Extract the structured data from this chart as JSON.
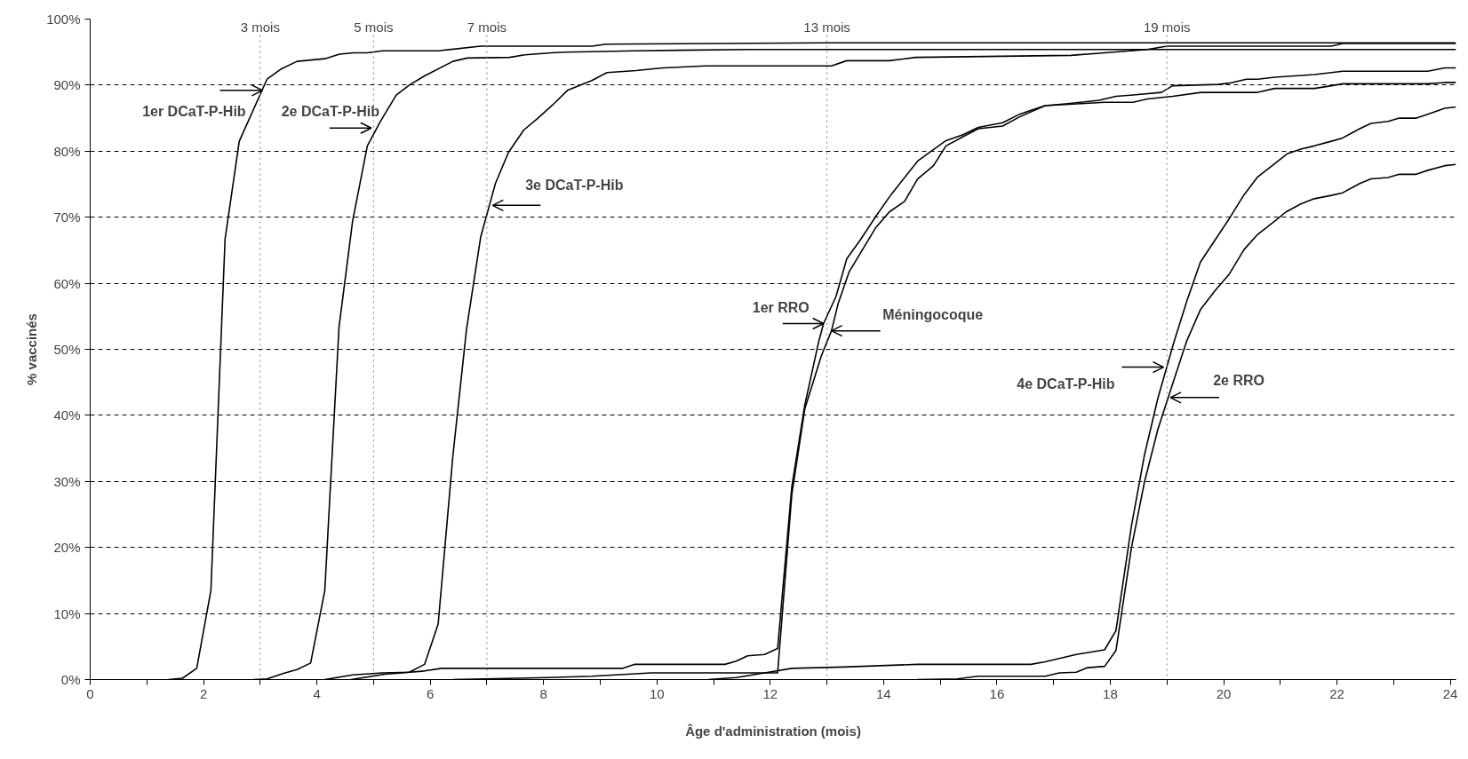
{
  "chart_data": {
    "type": "line",
    "xlabel": "Âge d'administration (mois)",
    "ylabel": "% vaccinés",
    "xlim": [
      0,
      24.1
    ],
    "ylim": [
      0,
      100
    ],
    "xticks": [
      0,
      {
        "value": 1,
        "label": null
      },
      2,
      {
        "value": 3,
        "label": null
      },
      4,
      {
        "value": 5,
        "label": null
      },
      6,
      {
        "value": 7,
        "label": null
      },
      8,
      {
        "value": 9,
        "label": null
      },
      10,
      {
        "value": 11,
        "label": null
      },
      12,
      {
        "value": 13,
        "label": null
      },
      14,
      {
        "value": 15,
        "label": null
      },
      16,
      {
        "value": 17,
        "label": null
      },
      18,
      {
        "value": 19,
        "label": null
      },
      20,
      {
        "value": 21,
        "label": null
      },
      22,
      {
        "value": 23,
        "label": null
      },
      24
    ],
    "yticks": [
      {
        "value": 0,
        "label": "0%"
      },
      {
        "value": 10,
        "label": "10%"
      },
      {
        "value": 20,
        "label": "20%"
      },
      {
        "value": 30,
        "label": "30%"
      },
      {
        "value": 40,
        "label": "40%"
      },
      {
        "value": 50,
        "label": "50%"
      },
      {
        "value": 60,
        "label": "60%"
      },
      {
        "value": 70,
        "label": "70%"
      },
      {
        "value": 80,
        "label": "80%"
      },
      {
        "value": 90,
        "label": "90%"
      },
      {
        "value": 100,
        "label": "100%"
      }
    ],
    "grid": "y",
    "line_style": "solid",
    "series": [
      {
        "color": "#000000",
        "x": [
          1.38,
          1.63,
          1.88,
          2.13,
          2.38,
          2.63,
          3.12,
          3.36,
          3.65,
          4.14,
          4.4,
          4.65,
          4.89,
          5.16,
          6.14,
          6.89,
          8.86,
          9.1,
          13.0,
          24.1
        ],
        "values": [
          0,
          0.2,
          1.7,
          13.5,
          66.7,
          81.5,
          90.9,
          92.4,
          93.6,
          94.0,
          94.7,
          94.9,
          94.9,
          95.2,
          95.2,
          95.9,
          95.9,
          96.2,
          96.4,
          96.4
        ]
      },
      {
        "color": "#000000",
        "x": [
          2.89,
          3.12,
          3.4,
          3.65,
          3.89,
          4.14,
          4.39,
          4.63,
          4.89,
          5.12,
          5.4,
          5.63,
          5.9,
          6.4,
          6.65,
          7.4,
          7.67,
          8.14,
          8.38,
          9.63,
          11.63,
          24.1
        ],
        "values": [
          0,
          0.1,
          0.9,
          1.5,
          2.5,
          13.5,
          53.3,
          69.4,
          80.8,
          84.5,
          88.5,
          90.0,
          91.4,
          93.6,
          94.1,
          94.2,
          94.6,
          94.9,
          95.0,
          95.2,
          95.4,
          95.4
        ]
      },
      {
        "color": "#000000",
        "x": [
          4.14,
          4.63,
          5.16,
          5.63,
          5.9,
          6.14,
          6.4,
          6.64,
          6.89,
          7.15,
          7.38,
          7.65,
          7.9,
          8.16,
          8.42,
          8.85,
          9.12,
          9.63,
          10.1,
          10.85,
          13.08,
          13.35,
          14.1,
          14.57,
          16.38,
          17.3,
          17.9,
          18.65,
          19.0,
          21.9,
          22.1,
          24.1
        ],
        "values": [
          0,
          0.7,
          1.0,
          1.1,
          2.3,
          8.4,
          33.9,
          53.0,
          67.0,
          75.1,
          79.8,
          83.2,
          85.0,
          87.0,
          89.2,
          90.7,
          91.9,
          92.2,
          92.6,
          92.9,
          92.9,
          93.7,
          93.7,
          94.2,
          94.4,
          94.5,
          94.9,
          95.4,
          95.9,
          95.9,
          96.3,
          96.3
        ]
      },
      {
        "color": "#000000",
        "x": [
          4.6,
          5.2,
          5.9,
          6.2,
          9.4,
          9.6,
          11.2,
          11.4,
          11.6,
          11.9,
          12.13,
          12.38,
          12.61,
          12.85,
          12.94,
          13.16,
          13.35,
          13.6,
          13.86,
          14.13,
          14.6,
          15.1,
          15.4,
          15.67,
          16.1,
          16.4,
          16.6,
          16.85,
          17.25,
          17.8,
          18.1,
          18.4,
          18.9,
          19.1,
          19.9,
          20.1,
          20.4,
          20.6,
          20.9,
          21.6,
          21.9,
          22.1,
          23.6,
          23.9,
          24.1
        ],
        "values": [
          0,
          0.8,
          1.3,
          1.7,
          1.7,
          2.3,
          2.3,
          2.8,
          3.6,
          3.8,
          4.7,
          29.2,
          41.6,
          51.0,
          53.9,
          58.0,
          63.7,
          66.7,
          70.1,
          73.4,
          78.5,
          81.6,
          82.5,
          83.6,
          84.3,
          85.6,
          86.2,
          86.9,
          87.2,
          87.7,
          88.3,
          88.5,
          88.9,
          89.9,
          90.1,
          90.3,
          90.9,
          90.9,
          91.2,
          91.6,
          91.9,
          92.1,
          92.1,
          92.6,
          92.6
        ]
      },
      {
        "color": "#000000",
        "x": [
          10.9,
          11.4,
          11.9,
          12.13,
          12.38,
          12.61,
          12.9,
          13.08,
          13.2,
          13.39,
          13.6,
          13.86,
          14.1,
          14.37,
          14.6,
          14.88,
          15.1,
          15.4,
          15.67,
          16.1,
          16.4,
          16.85,
          17.9,
          18.4,
          18.65,
          19.1,
          19.6,
          20.6,
          20.9,
          21.6,
          21.9,
          22.1,
          23.6,
          23.9,
          24.1
        ],
        "values": [
          0,
          0.3,
          1.0,
          1.0,
          28.0,
          41.0,
          49.0,
          52.8,
          57.0,
          61.7,
          64.7,
          68.4,
          70.8,
          72.4,
          75.8,
          77.8,
          80.8,
          82.2,
          83.4,
          83.8,
          85.2,
          86.9,
          87.4,
          87.4,
          87.9,
          88.3,
          88.9,
          88.9,
          89.5,
          89.5,
          89.9,
          90.2,
          90.2,
          90.4,
          90.4
        ]
      },
      {
        "color": "#000000",
        "x": [
          6.4,
          8.1,
          8.85,
          9.9,
          11.9,
          12.38,
          13.3,
          14.6,
          16.6,
          16.85,
          17.4,
          17.9,
          18.1,
          18.37,
          18.6,
          18.84,
          19.12,
          19.35,
          19.59,
          19.86,
          20.1,
          20.36,
          20.6,
          20.9,
          21.12,
          21.36,
          21.6,
          21.9,
          22.1,
          22.4,
          22.6,
          22.9,
          23.1,
          23.4,
          23.6,
          23.9,
          24.1
        ],
        "values": [
          0,
          0.3,
          0.5,
          1.0,
          1.0,
          1.7,
          1.9,
          2.3,
          2.3,
          2.7,
          3.8,
          4.5,
          7.4,
          23.1,
          33.9,
          42.6,
          51.0,
          57.3,
          63.2,
          66.7,
          69.8,
          73.4,
          76.1,
          78.1,
          79.6,
          80.3,
          80.8,
          81.5,
          82.0,
          83.4,
          84.2,
          84.5,
          85.0,
          85.0,
          85.6,
          86.5,
          86.7
        ]
      },
      {
        "color": "#000000",
        "x": [
          14.6,
          15.3,
          15.67,
          16.85,
          17.1,
          17.4,
          17.6,
          17.9,
          18.1,
          18.37,
          18.6,
          18.84,
          19.12,
          19.35,
          19.59,
          19.86,
          20.1,
          20.36,
          20.6,
          20.9,
          21.1,
          21.36,
          21.6,
          21.9,
          22.1,
          22.4,
          22.6,
          22.9,
          23.1,
          23.4,
          23.6,
          23.9,
          24.1
        ],
        "values": [
          0,
          0.1,
          0.5,
          0.5,
          1.0,
          1.1,
          1.8,
          2.0,
          4.4,
          19.8,
          29.8,
          37.9,
          45.3,
          51.3,
          56.0,
          59.0,
          61.4,
          65.1,
          67.4,
          69.4,
          70.8,
          72.0,
          72.8,
          73.3,
          73.7,
          75.1,
          75.8,
          76.0,
          76.5,
          76.5,
          77.1,
          77.8,
          78.0
        ]
      }
    ],
    "ref_lines": [
      {
        "axis": "x",
        "value": 3,
        "label": "3 mois",
        "color": "#808080",
        "line_style": "dotted"
      },
      {
        "axis": "x",
        "value": 5,
        "label": "5 mois",
        "color": "#808080",
        "line_style": "dotted"
      },
      {
        "axis": "x",
        "value": 7,
        "label": "7 mois",
        "color": "#808080",
        "line_style": "dotted"
      },
      {
        "axis": "x",
        "value": 13,
        "label": "13 mois",
        "color": "#808080",
        "line_style": "dotted"
      },
      {
        "axis": "x",
        "value": 19,
        "label": "19 mois",
        "color": "#808080",
        "line_style": "dotted"
      }
    ],
    "annotations": [
      {
        "text": "1er DCaT-P-Hib",
        "x": 3.04,
        "y": 89.2
      },
      {
        "text": "2e DCaT-P-Hib",
        "x": 4.96,
        "y": 83.5
      },
      {
        "text": "3e DCaT-P-Hib",
        "x": 7.1,
        "y": 71.8
      },
      {
        "text": "1er RRO",
        "x": 12.94,
        "y": 53.9
      },
      {
        "text": "Méningocoque",
        "x": 13.08,
        "y": 52.8
      },
      {
        "text": "4e DCaT-P-Hib",
        "x": 18.94,
        "y": 47.3
      },
      {
        "text": "2e RRO",
        "x": 19.06,
        "y": 42.7
      }
    ]
  }
}
